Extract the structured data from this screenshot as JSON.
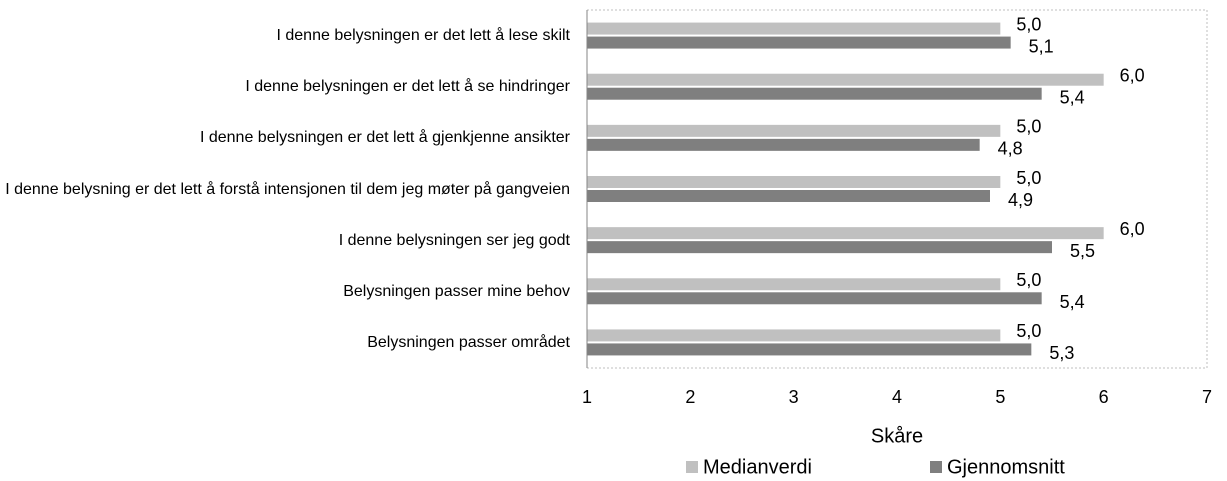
{
  "chart_data": {
    "type": "bar",
    "orientation": "horizontal",
    "categories": [
      "I denne belysningen er det lett å lese skilt",
      "I denne belysningen er det lett å se hindringer",
      "I denne belysningen er det lett å gjenkjenne ansikter",
      "I denne belysning er det lett å forstå intensjonen til dem jeg møter på gangveien",
      "I denne belysningen ser jeg godt",
      "Belysningen passer mine behov",
      "Belysningen passer området"
    ],
    "series": [
      {
        "name": "Medianverdi",
        "color": "#c0c0c0",
        "values": [
          5,
          6,
          5,
          5,
          6,
          5,
          5
        ],
        "value_labels": [
          "5,0",
          "6,0",
          "5,0",
          "5,0",
          "6,0",
          "5,0",
          "5,0"
        ]
      },
      {
        "name": "Gjennomsnitt",
        "color": "#7f7f7f",
        "values": [
          5.1,
          5.4,
          4.8,
          4.9,
          5.5,
          5.4,
          5.3
        ],
        "value_labels": [
          "5,1",
          "5,4",
          "4,8",
          "4,9",
          "5,5",
          "5,4",
          "5,3"
        ]
      }
    ],
    "xlabel": "Skåre",
    "xlim": [
      1,
      7
    ],
    "xticks": [
      1,
      2,
      3,
      4,
      5,
      6,
      7
    ],
    "legend": "bottom"
  }
}
